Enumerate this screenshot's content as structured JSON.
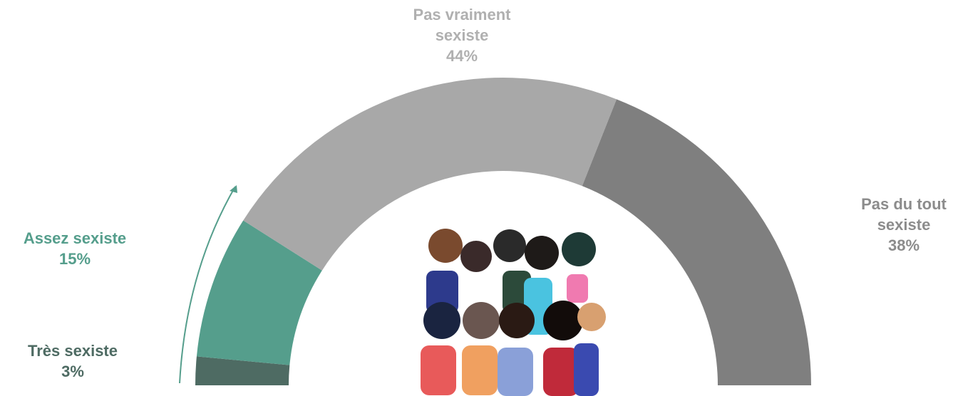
{
  "chart_data": {
    "type": "pie",
    "half": true,
    "categories": [
      "Très sexiste",
      "Assez sexiste",
      "Pas vraiment sexiste",
      "Pas du tout sexiste"
    ],
    "values": [
      3,
      15,
      44,
      38
    ],
    "value_labels": [
      "3%",
      "15%",
      "44%",
      "38%"
    ],
    "colors": [
      "#4e6b63",
      "#559e8c",
      "#a8a8a8",
      "#7f7f7f"
    ]
  }
}
